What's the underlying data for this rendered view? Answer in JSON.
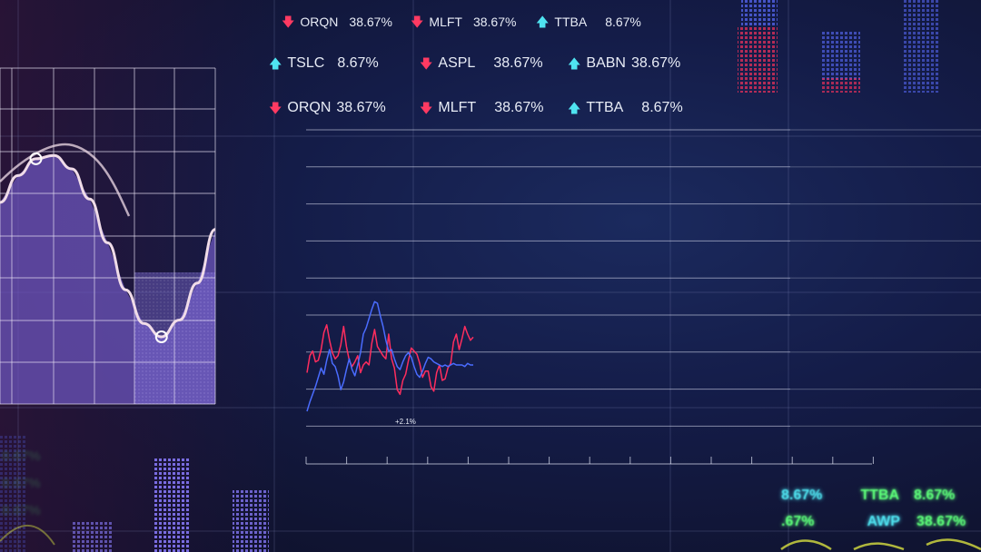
{
  "tickers": {
    "row1": [
      {
        "symbol": "ORQN",
        "value": "38.67%",
        "dir": "down"
      },
      {
        "symbol": "MLFT",
        "value": "38.67%",
        "dir": "down"
      },
      {
        "symbol": "TTBA",
        "value": "8.67%",
        "dir": "up"
      }
    ],
    "row2": [
      {
        "symbol": "TSLC",
        "value": "8.67%",
        "dir": "up"
      },
      {
        "symbol": "ASPL",
        "value": "38.67%",
        "dir": "down"
      },
      {
        "symbol": "BABN",
        "value": "38.67%",
        "dir": "up"
      }
    ],
    "row3": [
      {
        "symbol": "ORQN",
        "value": "38.67%",
        "dir": "down"
      },
      {
        "symbol": "MLFT",
        "value": "38.67%",
        "dir": "down"
      },
      {
        "symbol": "TTBA",
        "value": "8.67%",
        "dir": "up"
      }
    ]
  },
  "corner_tickers": {
    "line1": {
      "left": "8.67%",
      "symbol": "TTBA",
      "right": "8.67%"
    },
    "line2": {
      "left": ".67%",
      "symbol": "AWP",
      "right": "38.67%"
    }
  },
  "left_faded": [
    "8.67%",
    "8.67%",
    "8.67%"
  ],
  "colors": {
    "up": "#4fe3f0",
    "down": "#ff3a62",
    "series_red": "#ff2d5e",
    "series_blue": "#4a6cff",
    "curve_fill": "#7a5fc8",
    "curve_line": "#f0dce8",
    "green_text": "#5dff7a"
  },
  "chart_data": [
    {
      "type": "line",
      "title": "",
      "annotation": "+2.1%",
      "x": [
        0,
        1,
        2,
        3,
        4,
        5,
        6,
        7,
        8,
        9,
        10,
        11,
        12,
        13,
        14,
        15,
        16,
        17,
        18,
        19,
        20,
        21,
        22,
        23,
        24,
        25,
        26,
        27,
        28,
        29,
        30,
        31,
        32,
        33,
        34,
        35,
        36,
        37,
        38,
        39,
        40,
        41,
        42,
        43,
        44,
        45,
        46,
        47,
        48,
        49,
        50,
        51,
        52,
        53,
        54,
        55,
        56,
        57,
        58,
        59
      ],
      "series": [
        {
          "values": [
            3.5,
            4.6,
            4.9,
            4.2,
            4.3,
            5.0,
            6.1,
            6.6,
            5.6,
            4.8,
            4.4,
            4.6,
            5.3,
            6.5,
            5.2,
            4.3,
            3.9,
            4.2,
            4.6,
            3.5,
            4.0,
            4.2,
            4.0,
            5.4,
            6.3,
            5.2,
            4.9,
            4.6,
            4.4,
            6.0,
            4.4,
            3.8,
            2.4,
            2.1,
            3.0,
            3.4,
            4.3,
            5.1,
            4.9,
            4.7,
            4.1,
            3.2,
            3.6,
            3.6,
            2.6,
            2.3,
            3.5,
            4.0,
            3.0,
            3.1,
            3.8,
            4.1,
            5.5,
            6.0,
            5.0,
            5.7,
            6.5,
            6.0,
            5.6,
            5.8
          ]
        },
        {
          "values": [
            1.0,
            1.6,
            2.1,
            2.6,
            3.2,
            3.8,
            3.4,
            4.3,
            5.0,
            4.1,
            3.9,
            3.3,
            2.4,
            2.9,
            3.7,
            4.4,
            3.7,
            3.3,
            4.0,
            4.8,
            6.0,
            6.4,
            7.0,
            7.6,
            8.1,
            8.0,
            7.2,
            6.5,
            5.6,
            4.9,
            5.0,
            4.4,
            3.9,
            3.7,
            4.2,
            4.6,
            4.8,
            4.5,
            3.9,
            3.4,
            3.2,
            3.6,
            4.1,
            4.5,
            4.4,
            4.2,
            4.1,
            4.0,
            3.9,
            4.0,
            3.9,
            4.0,
            4.1,
            4.0,
            4.0,
            4.0,
            3.9,
            4.1,
            4.0,
            4.0
          ]
        }
      ],
      "ylim": [
        0,
        10
      ]
    },
    {
      "type": "area",
      "x": [
        0,
        1,
        2,
        3,
        4,
        5,
        6,
        7,
        8,
        9,
        10,
        11,
        12
      ],
      "values": [
        6.0,
        6.8,
        7.3,
        7.4,
        7.0,
        6.1,
        4.8,
        3.4,
        2.4,
        2.0,
        2.5,
        3.6,
        5.2
      ],
      "markers": [
        2,
        9
      ],
      "ylim": [
        0,
        10
      ]
    }
  ]
}
